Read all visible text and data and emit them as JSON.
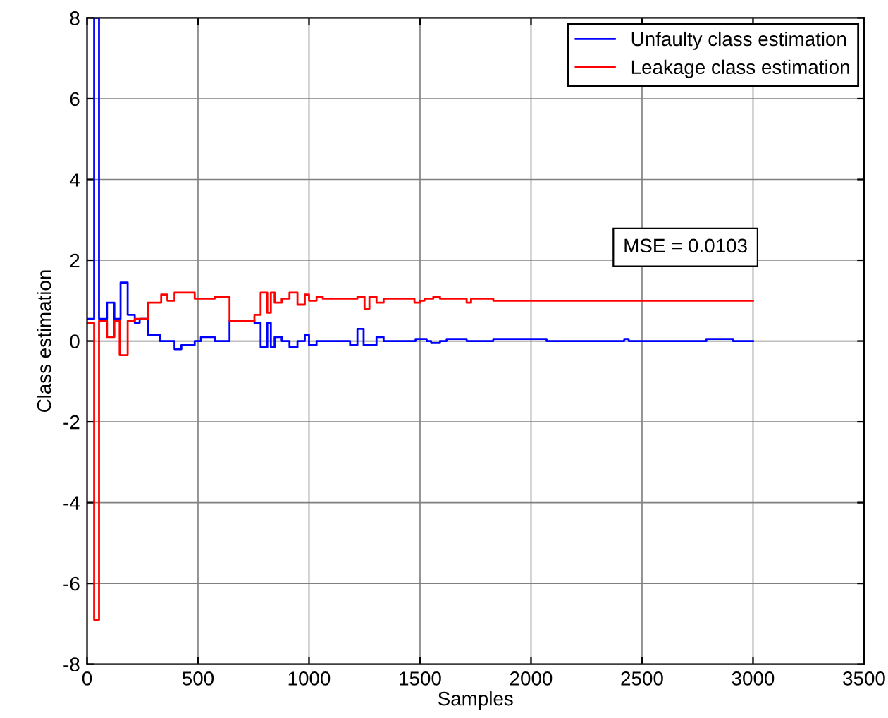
{
  "chart_data": {
    "type": "step",
    "xlabel": "Samples",
    "ylabel": "Class estimation",
    "xlim": [
      0,
      3500
    ],
    "xticks": [
      0,
      500,
      1000,
      1500,
      2000,
      2500,
      3000,
      3500
    ],
    "ylim": [
      -8,
      8
    ],
    "yticks": [
      -8,
      -6,
      -4,
      -2,
      0,
      2,
      4,
      6,
      8
    ],
    "grid": true,
    "legend": "top right",
    "line_style": "solid",
    "annotations": [
      "MSE = 0.0103"
    ],
    "series": [
      {
        "name": "Unfaulty class estimation",
        "color": "#0000ff",
        "x": [
          0,
          32,
          54,
          90,
          123,
          151,
          183,
          215,
          237,
          274,
          328,
          362,
          394,
          425,
          485,
          513,
          575,
          642,
          754,
          782,
          812,
          828,
          845,
          877,
          912,
          948,
          981,
          1000,
          1034,
          1062,
          1185,
          1218,
          1246,
          1304,
          1336,
          1480,
          1530,
          1550,
          1590,
          1620,
          1710,
          1830,
          2070,
          2420,
          2440,
          2790,
          2910,
          3000
        ],
        "values": [
          0.55,
          8,
          0.55,
          0.95,
          0.55,
          1.45,
          0.65,
          0.45,
          0.55,
          0.15,
          0,
          0,
          -0.2,
          -0.1,
          0,
          0.1,
          0,
          0.5,
          0.45,
          -0.15,
          0.45,
          -0.15,
          0.1,
          0,
          -0.15,
          0,
          0.15,
          -0.1,
          0,
          0,
          -0.1,
          0.3,
          -0.1,
          0.1,
          0,
          0.05,
          0,
          -0.05,
          0,
          0.05,
          0,
          0.05,
          0,
          0.05,
          0,
          0.05,
          0,
          0
        ]
      },
      {
        "name": "Leakage class estimation",
        "color": "#ff0000",
        "x": [
          0,
          32,
          54,
          90,
          123,
          147,
          183,
          215,
          274,
          334,
          362,
          394,
          425,
          485,
          575,
          642,
          754,
          782,
          812,
          828,
          845,
          877,
          912,
          948,
          981,
          1000,
          1034,
          1062,
          1218,
          1250,
          1272,
          1304,
          1336,
          1475,
          1500,
          1520,
          1560,
          1590,
          1710,
          1730,
          1830,
          2070,
          3000
        ],
        "values": [
          0.45,
          -6.9,
          0.5,
          0.1,
          0.5,
          -0.35,
          0.5,
          0.55,
          0.95,
          1.15,
          1.0,
          1.2,
          1.2,
          1.05,
          1.1,
          0.5,
          0.65,
          1.2,
          0.7,
          1.2,
          0.95,
          1.05,
          1.2,
          0.9,
          1.15,
          1.0,
          1.1,
          1.05,
          1.1,
          0.8,
          1.1,
          0.95,
          1.05,
          0.95,
          1.0,
          1.05,
          1.1,
          1.05,
          0.95,
          1.05,
          1.0,
          1.0,
          1.0
        ]
      }
    ]
  }
}
